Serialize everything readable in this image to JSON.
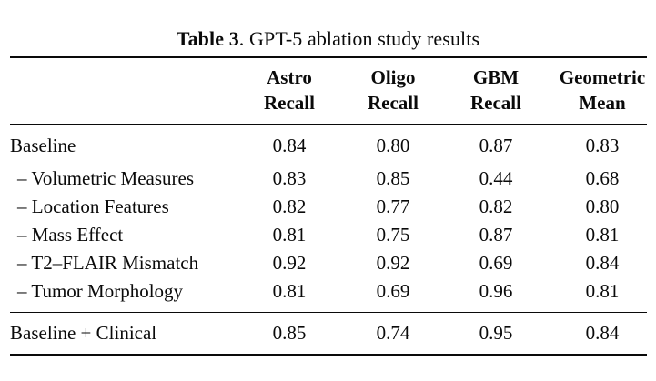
{
  "caption": {
    "prefix": "Table 3",
    "rest": ". GPT-5 ablation study results"
  },
  "table": {
    "header": [
      {
        "line1": "Astro",
        "line2": "Recall"
      },
      {
        "line1": "Oligo",
        "line2": "Recall"
      },
      {
        "line1": "GBM",
        "line2": "Recall"
      },
      {
        "line1": "Geometric",
        "line2": "Mean"
      }
    ],
    "rows": [
      {
        "label": "Baseline",
        "values": [
          "0.84",
          "0.80",
          "0.87",
          "0.83"
        ]
      },
      {
        "label": "– Volumetric Measures",
        "values": [
          "0.83",
          "0.85",
          "0.44",
          "0.68"
        ]
      },
      {
        "label": "– Location Features",
        "values": [
          "0.82",
          "0.77",
          "0.82",
          "0.80"
        ]
      },
      {
        "label": "– Mass Effect",
        "values": [
          "0.81",
          "0.75",
          "0.87",
          "0.81"
        ]
      },
      {
        "label": "– T2–FLAIR Mismatch",
        "values": [
          "0.92",
          "0.92",
          "0.69",
          "0.84"
        ]
      },
      {
        "label": "– Tumor Morphology",
        "values": [
          "0.81",
          "0.69",
          "0.96",
          "0.81"
        ]
      }
    ],
    "footer_row": {
      "label": "Baseline + Clinical",
      "values": [
        "0.85",
        "0.74",
        "0.95",
        "0.84"
      ]
    }
  },
  "colors": {
    "text": "#0a0a0a",
    "background": "#ffffff"
  }
}
